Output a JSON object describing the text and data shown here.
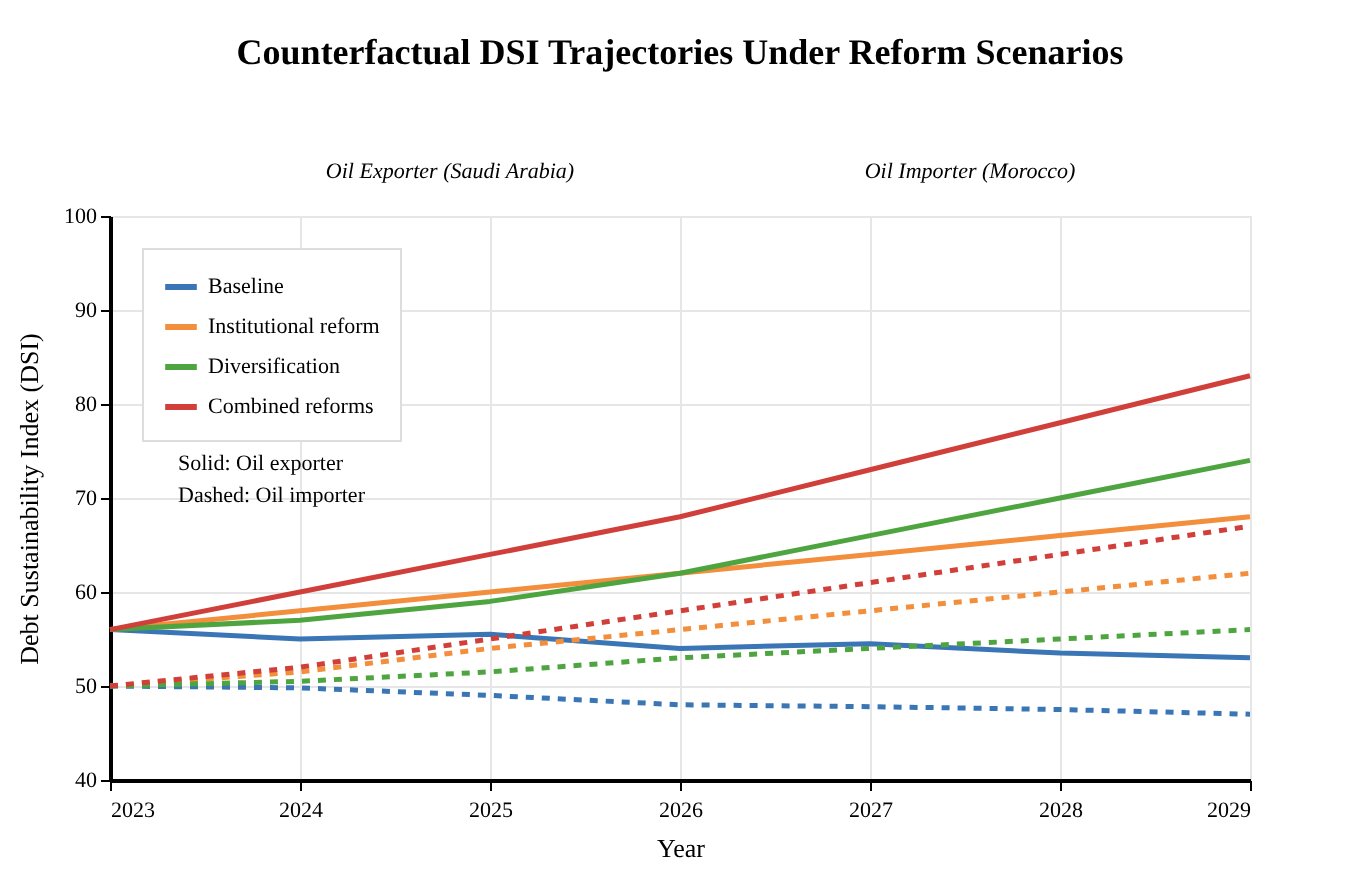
{
  "chart_data": {
    "type": "line",
    "title": "Counterfactual DSI Trajectories Under Reform Scenarios",
    "xlabel": "Year",
    "ylabel": "Debt Sustainability Index (DSI)",
    "annotations": [
      "Oil Exporter (Saudi Arabia)",
      "Oil Importer (Morocco)",
      "Solid: Oil exporter",
      "Dashed: Oil importer"
    ],
    "x": [
      2023,
      2024,
      2025,
      2026,
      2027,
      2028,
      2029
    ],
    "series": [
      {
        "name": "Baseline",
        "color": "#3a75b5",
        "line_style": "solid",
        "values": [
          56,
          55,
          55.5,
          54,
          54.5,
          53.5,
          53
        ]
      },
      {
        "name": "Institutional reform",
        "color": "#f28e3c",
        "line_style": "solid",
        "values": [
          56,
          58,
          60,
          62,
          64,
          66,
          68
        ]
      },
      {
        "name": "Diversification",
        "color": "#4ea540",
        "line_style": "solid",
        "values": [
          56,
          57,
          59,
          62,
          66,
          70,
          74
        ]
      },
      {
        "name": "Combined reforms",
        "color": "#d13f3a",
        "line_style": "solid",
        "values": [
          56,
          60,
          64,
          68,
          73,
          78,
          83
        ]
      },
      {
        "color": "#3a75b5",
        "line_style": "dashed",
        "values": [
          50,
          49.8,
          49,
          48,
          47.8,
          47.5,
          47
        ]
      },
      {
        "color": "#f28e3c",
        "line_style": "dashed",
        "values": [
          50,
          51.5,
          54,
          56,
          58,
          60,
          62
        ]
      },
      {
        "color": "#4ea540",
        "line_style": "dashed",
        "values": [
          50,
          50.5,
          51.5,
          53,
          54,
          55,
          56
        ]
      },
      {
        "color": "#d13f3a",
        "line_style": "dashed",
        "values": [
          50,
          52,
          55,
          58,
          61,
          64,
          67
        ]
      }
    ],
    "xlim": [
      2023,
      2029
    ],
    "xticks": [
      2023,
      2024,
      2025,
      2026,
      2027,
      2028,
      2029
    ],
    "ylim": [
      40,
      100
    ],
    "yticks": [
      40,
      50,
      60,
      70,
      80,
      90,
      100
    ],
    "grid": true,
    "legend": "top left"
  }
}
